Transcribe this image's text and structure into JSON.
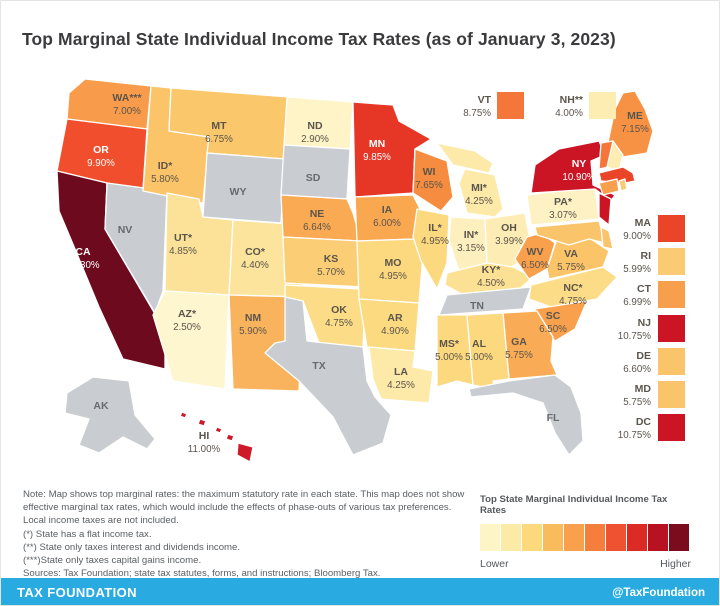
{
  "title": "Top Marginal State Individual Income Tax Rates (as of January 3, 2023)",
  "map": {
    "no_tax_color": "#C9CDD1",
    "label_colors": {
      "dark": "#5B554C",
      "light": "#FFFFFF",
      "muted": "#666B70"
    },
    "white_label_states": [
      "CA",
      "OR",
      "MN",
      "NY"
    ],
    "callouts_top": [
      "VT",
      "NH"
    ],
    "east_list": [
      "MA",
      "RI",
      "CT",
      "NJ",
      "DE",
      "MD",
      "DC"
    ],
    "states": [
      {
        "id": "WA",
        "label": "WA***",
        "rate": "7.00%",
        "color": "#F89C4B"
      },
      {
        "id": "OR",
        "label": "OR",
        "rate": "9.90%",
        "color": "#F04E2C"
      },
      {
        "id": "CA",
        "label": "CA",
        "rate": "13.30%",
        "color": "#6E0A1E"
      },
      {
        "id": "NV",
        "label": "NV",
        "rate": null,
        "color": null
      },
      {
        "id": "ID",
        "label": "ID*",
        "rate": "5.80%",
        "color": "#FBC468"
      },
      {
        "id": "MT",
        "label": "MT",
        "rate": "6.75%",
        "color": "#FBC76B"
      },
      {
        "id": "WY",
        "label": "WY",
        "rate": null,
        "color": null
      },
      {
        "id": "UT",
        "label": "UT*",
        "rate": "4.85%",
        "color": "#FCE298"
      },
      {
        "id": "CO",
        "label": "CO*",
        "rate": "4.40%",
        "color": "#FCE49C"
      },
      {
        "id": "AZ",
        "label": "AZ*",
        "rate": "2.50%",
        "color": "#FEF6CE"
      },
      {
        "id": "NM",
        "label": "NM",
        "rate": "5.90%",
        "color": "#F9B35C"
      },
      {
        "id": "ND",
        "label": "ND",
        "rate": "2.90%",
        "color": "#FEF4C8"
      },
      {
        "id": "SD",
        "label": "SD",
        "rate": null,
        "color": null
      },
      {
        "id": "NE",
        "label": "NE",
        "rate": "6.64%",
        "color": "#F9AA52"
      },
      {
        "id": "KS",
        "label": "KS",
        "rate": "5.70%",
        "color": "#FBCD74"
      },
      {
        "id": "OK",
        "label": "OK",
        "rate": "4.75%",
        "color": "#FCDC86"
      },
      {
        "id": "TX",
        "label": "TX",
        "rate": null,
        "color": null
      },
      {
        "id": "MN",
        "label": "MN",
        "rate": "9.85%",
        "color": "#E63626"
      },
      {
        "id": "IA",
        "label": "IA",
        "rate": "6.00%",
        "color": "#F9A850"
      },
      {
        "id": "MO",
        "label": "MO",
        "rate": "4.95%",
        "color": "#FCD87E"
      },
      {
        "id": "AR",
        "label": "AR",
        "rate": "4.90%",
        "color": "#FCDA80"
      },
      {
        "id": "LA",
        "label": "LA",
        "rate": "4.25%",
        "color": "#FDE9A8"
      },
      {
        "id": "WI",
        "label": "WI",
        "rate": "7.65%",
        "color": "#F68C3F"
      },
      {
        "id": "IL",
        "label": "IL*",
        "rate": "4.95%",
        "color": "#FCD87E"
      },
      {
        "id": "MS",
        "label": "MS*",
        "rate": "5.00%",
        "color": "#FCD87E"
      },
      {
        "id": "MI",
        "label": "MI*",
        "rate": "4.25%",
        "color": "#FDE9A8"
      },
      {
        "id": "IN",
        "label": "IN*",
        "rate": "3.15%",
        "color": "#FEF0BE"
      },
      {
        "id": "OH",
        "label": "OH",
        "rate": "3.99%",
        "color": "#FDEDB4"
      },
      {
        "id": "KY",
        "label": "KY*",
        "rate": "4.50%",
        "color": "#FCE194"
      },
      {
        "id": "TN",
        "label": "TN",
        "rate": null,
        "color": null
      },
      {
        "id": "WV",
        "label": "WV",
        "rate": "6.50%",
        "color": "#F9A04C"
      },
      {
        "id": "VA",
        "label": "VA",
        "rate": "5.75%",
        "color": "#FBC468"
      },
      {
        "id": "NC",
        "label": "NC*",
        "rate": "4.75%",
        "color": "#FCDC86"
      },
      {
        "id": "SC",
        "label": "SC",
        "rate": "6.50%",
        "color": "#F9A04C"
      },
      {
        "id": "GA",
        "label": "GA",
        "rate": "5.75%",
        "color": "#F9AC55"
      },
      {
        "id": "AL",
        "label": "AL",
        "rate": "5.00%",
        "color": "#FCD87E"
      },
      {
        "id": "MS2",
        "label": "",
        "rate": null,
        "color": null
      },
      {
        "id": "FL",
        "label": "FL",
        "rate": null,
        "color": null
      },
      {
        "id": "PA",
        "label": "PA*",
        "rate": "3.07%",
        "color": "#FEF2C4"
      },
      {
        "id": "NY",
        "label": "NY",
        "rate": "10.90%",
        "color": "#CC1524"
      },
      {
        "id": "ME",
        "label": "ME",
        "rate": "7.15%",
        "color": "#F79245"
      },
      {
        "id": "VT",
        "label": "VT",
        "rate": "8.75%",
        "color": "#F4763B"
      },
      {
        "id": "NH",
        "label": "NH**",
        "rate": "4.00%",
        "color": "#FDEDB2"
      },
      {
        "id": "MA",
        "label": "MA",
        "rate": "9.00%",
        "color": "#EA4429"
      },
      {
        "id": "RI",
        "label": "RI",
        "rate": "5.99%",
        "color": "#FACB72"
      },
      {
        "id": "CT",
        "label": "CT",
        "rate": "6.99%",
        "color": "#F89F4D"
      },
      {
        "id": "NJ",
        "label": "NJ",
        "rate": "10.75%",
        "color": "#CC1524"
      },
      {
        "id": "DE",
        "label": "DE",
        "rate": "6.60%",
        "color": "#FAC46A"
      },
      {
        "id": "MD",
        "label": "MD",
        "rate": "5.75%",
        "color": "#FAC46A"
      },
      {
        "id": "DC",
        "label": "DC",
        "rate": "10.75%",
        "color": "#CC1524"
      },
      {
        "id": "AK",
        "label": "AK",
        "rate": null,
        "color": null
      },
      {
        "id": "HI",
        "label": "HI",
        "rate": "11.00%",
        "color": "#CE1929"
      }
    ]
  },
  "notes": {
    "paragraph": "Note: Map shows top marginal rates: the maximum statutory rate in each state. This map does not show effective marginal tax rates, which would include the effects of phase-outs of various tax preferences. Local income taxes are not included.",
    "flat_tax": "(*) State has a flat income tax.",
    "interest_dividends": "(**) State only taxes interest and dividends income.",
    "capital_gains": "(***)State only taxes capital gains income.",
    "sources": "Sources: Tax Foundation; state tax statutes, forms, and instructions; Bloomberg Tax."
  },
  "legend": {
    "title": "Top State Marginal Individual Income Tax Rates",
    "low_label": "Lower",
    "high_label": "Higher",
    "colors": [
      "#FDF5C6",
      "#FCEBA6",
      "#FBD97C",
      "#F9BC5C",
      "#F8A04C",
      "#F57E3C",
      "#EE5230",
      "#DB2B24",
      "#B81122",
      "#7A0C1E"
    ]
  },
  "footer": {
    "brand": "TAX FOUNDATION",
    "handle": "@TaxFoundation",
    "background": "#29ABE2"
  },
  "chart_data": {
    "type": "choropleth",
    "title": "Top Marginal State Individual Income Tax Rates (as of January 3, 2023)",
    "unit": "percent",
    "values": {
      "AL": 5.0,
      "AK": null,
      "AZ": 2.5,
      "AR": 4.9,
      "CA": 13.3,
      "CO": 4.4,
      "CT": 6.99,
      "DC": 10.75,
      "DE": 6.6,
      "FL": null,
      "GA": 5.75,
      "HI": 11.0,
      "ID": 5.8,
      "IL": 4.95,
      "IN": 3.15,
      "IA": 6.0,
      "KS": 5.7,
      "KY": 4.5,
      "LA": 4.25,
      "ME": 7.15,
      "MD": 5.75,
      "MA": 9.0,
      "MI": 4.25,
      "MN": 9.85,
      "MS": 5.0,
      "MO": 4.95,
      "MT": 6.75,
      "NE": 6.64,
      "NV": null,
      "NH": 4.0,
      "NJ": 10.75,
      "NM": 5.9,
      "NY": 10.9,
      "NC": 4.75,
      "ND": 2.9,
      "OH": 3.99,
      "OK": 4.75,
      "OR": 9.9,
      "PA": 3.07,
      "RI": 5.99,
      "SC": 6.5,
      "SD": null,
      "TN": null,
      "TX": null,
      "UT": 4.85,
      "VT": 8.75,
      "VA": 5.75,
      "WA": 7.0,
      "WV": 6.5,
      "WI": 7.65,
      "WY": null
    },
    "flat_tax_states": [
      "AZ",
      "CO",
      "ID",
      "IL",
      "IN",
      "KY",
      "MI",
      "MS",
      "NC",
      "PA",
      "UT"
    ],
    "interest_dividends_only": [
      "NH"
    ],
    "capital_gains_only": [
      "WA"
    ],
    "no_income_tax": [
      "AK",
      "FL",
      "NV",
      "SD",
      "TN",
      "TX",
      "WY"
    ],
    "scale": {
      "low_label": "Lower",
      "high_label": "Higher",
      "legend_position": "bottom-right"
    }
  }
}
